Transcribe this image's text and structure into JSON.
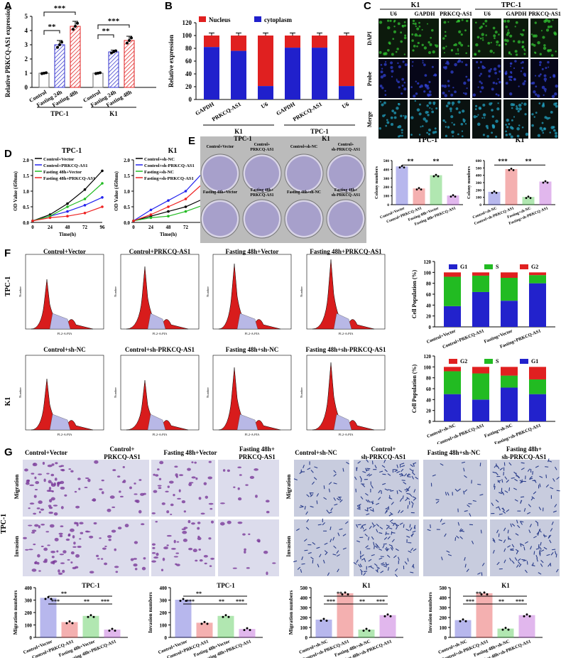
{
  "panel_letters": {
    "A": "A",
    "B": "B",
    "C": "C",
    "D": "D",
    "E": "E",
    "F": "F",
    "G": "G"
  },
  "panelA": {
    "ylabel": "Relative PRKCQ-AS1 expression",
    "yticks": [
      "0",
      "1",
      "2",
      "3",
      "4",
      "5"
    ],
    "groups": [
      {
        "label": "TPC-1",
        "cats": [
          "Control",
          "Fasting 24h",
          "Fasting 48h"
        ],
        "values": [
          1.0,
          3.0,
          4.3
        ],
        "err": [
          0.05,
          0.3,
          0.35
        ]
      },
      {
        "label": "K1",
        "cats": [
          "Control",
          "Fasting 24h",
          "Fasting 48h"
        ],
        "values": [
          1.0,
          2.5,
          3.3
        ],
        "err": [
          0.05,
          0.12,
          0.3
        ]
      }
    ],
    "sig": [
      "**",
      "***",
      "**",
      "***"
    ]
  },
  "panelB": {
    "ylabel": "Relative expression",
    "yticks": [
      "0",
      "20",
      "40",
      "60",
      "80",
      "100",
      "120"
    ],
    "legend": [
      "Nucleus",
      "cytoplasm"
    ],
    "cats": [
      "GAPDH",
      "PRKCQ-AS1",
      "U6",
      "GAPDH",
      "PRKCQ-AS1",
      "U6"
    ],
    "cyto": [
      82,
      76,
      21,
      81,
      81,
      21
    ],
    "groups": [
      "K1",
      "TPC-1"
    ]
  },
  "panelC": {
    "groups": [
      "K1",
      "TPC-1"
    ],
    "cols": [
      "U6",
      "GAPDH",
      "PRKCQ-AS1",
      "U6",
      "GAPDH",
      "PRKCQ-AS1"
    ],
    "rows": [
      "DAPI",
      "Probe",
      "Merge"
    ]
  },
  "panelD": {
    "xlabel": "Time(h)",
    "ylabel": "OD Value (450nm)",
    "xticks": [
      "0",
      "24",
      "48",
      "72",
      "96"
    ],
    "charts": [
      {
        "title": "TPC-1",
        "legend": [
          "Control+Vector",
          "Control+PRKCQ-AS1",
          "Fasting 48h+Vector",
          "Fasting 48h+PRKCQ-AS1"
        ],
        "series": [
          [
            0.05,
            0.25,
            0.6,
            1.05,
            1.65
          ],
          [
            0.05,
            0.2,
            0.35,
            0.55,
            0.8
          ],
          [
            0.05,
            0.2,
            0.5,
            0.75,
            1.25
          ],
          [
            0.05,
            0.15,
            0.2,
            0.3,
            0.5
          ]
        ],
        "yticks": [
          "0.0",
          "0.5",
          "1.0",
          "1.5",
          "2.0"
        ]
      },
      {
        "title": "K1",
        "legend": [
          "Control+sh-NC",
          "Control+sh-PRKCQ-AS1",
          "Fasting+sh-NC",
          "Fasting+sh-PRKCQ-AS1"
        ],
        "series": [
          [
            0.05,
            0.2,
            0.35,
            0.5,
            0.75
          ],
          [
            0.05,
            0.4,
            0.7,
            1.0,
            1.6
          ],
          [
            0.05,
            0.15,
            0.2,
            0.35,
            0.55
          ],
          [
            0.05,
            0.25,
            0.5,
            0.75,
            1.25
          ]
        ],
        "yticks": [
          "0.0",
          "0.5",
          "1.0",
          "1.5",
          "2.0"
        ]
      }
    ],
    "colors": [
      "#000000",
      "#2222ee",
      "#22bb22",
      "#ee2222"
    ]
  },
  "panelE": {
    "groups": [
      "TPC-1",
      "K1"
    ],
    "dish_labels": [
      "Control+Vector",
      "Control+ PRKCQ-AS1",
      "Control+sh-NC",
      "Control+ sh-PRKCQ-AS1",
      "Fasting 48h+Vector",
      "Fasting 48h+ PRKCQ-AS1",
      "Fasting 48h+sh-NC",
      "Fasting 48h+ sh-PRKCQ-AS1"
    ],
    "bars": [
      {
        "title": "TPC-1",
        "ylabel": "Colony numbers",
        "yticks": [
          "0",
          "100",
          "200",
          "300",
          "400",
          "500"
        ],
        "ymax": 500,
        "cats": [
          "Control+Vector",
          "Control+PRKCQ-AS1",
          "Fasting 48h+Vector",
          "Fasting 48h+PRKCQ-AS1"
        ],
        "values": [
          430,
          180,
          330,
          100
        ],
        "sig": [
          "**",
          "**"
        ]
      },
      {
        "title": "K1",
        "ylabel": "Colony numbers",
        "yticks": [
          "0",
          "100",
          "200",
          "300",
          "400",
          "500",
          "600"
        ],
        "ymax": 600,
        "cats": [
          "Control+sh-NC",
          "Control+sh-PRKCQ-AS1",
          "Fasting+sh-NC",
          "Fasting+sh-PRKCQ-AS1"
        ],
        "values": [
          170,
          480,
          100,
          310
        ],
        "sig": [
          "***",
          "**"
        ]
      }
    ]
  },
  "panelF": {
    "rows": [
      "TPC-1",
      "K1"
    ],
    "titles": [
      "Control+Vector",
      "Control+PRKCQ-AS1",
      "Fasting 48h+Vector",
      "Fasting 48h+PRKCQ-AS1",
      "Control+sh-NC",
      "Control+sh-PRKCQ-AS1",
      "Fasting 48h+sh-NC",
      "Fasting 48h+sh-PRKCQ-AS1"
    ],
    "xaxis": "FL2-A:PIA",
    "yaxis": "Number",
    "ylabel": "Cell Population (%)",
    "yticks": [
      "0",
      "20",
      "40",
      "60",
      "80",
      "100",
      "120"
    ],
    "stack1": {
      "legend": [
        "G1",
        "S",
        "G2"
      ],
      "cats": [
        "Control+Vector",
        "Control+PRKCQ-AS1",
        "Fasting+Vector",
        "Fasting+PRKCQ-AS1"
      ],
      "G1": [
        38,
        64,
        48,
        80
      ],
      "S": [
        54,
        30,
        42,
        15
      ],
      "G2": [
        8,
        6,
        10,
        5
      ]
    },
    "stack2": {
      "legend": [
        "G2",
        "S",
        "G1"
      ],
      "cats": [
        "Control+sh-NC",
        "Control+sh-PRKCQ-AS1",
        "Fasting+sh-NC",
        "Fasting+sh-PRKCQ-AS1"
      ],
      "G1": [
        50,
        40,
        62,
        50
      ],
      "S": [
        42,
        48,
        22,
        27
      ],
      "G2": [
        8,
        12,
        16,
        23
      ]
    }
  },
  "panelG": {
    "rowsL": [
      "Migration",
      "Invasion"
    ],
    "sideL": "TPC-1",
    "sideR": "K1",
    "rowsR": [
      "Migration",
      "Invasion"
    ],
    "colsL": [
      "Control+Vector",
      "Control+ PRKCQ-AS1",
      "Fasting 48h+Vector",
      "Fasting 48h+ PRKCQ-AS1"
    ],
    "colsR": [
      "Control+sh-NC",
      "Control+ sh-PRKCQ-AS1",
      "Fasting 48h+sh-NC",
      "Fasting 48h+ sh-PRKCQ-AS1"
    ],
    "bars": [
      {
        "title": "TPC-1",
        "ylabel": "Migration numbers",
        "yticks": [
          "0",
          "100",
          "200",
          "300",
          "400"
        ],
        "ymax": 400,
        "cats": [
          "Control+Vector",
          "Control+PRKCQ-AS1",
          "Fasting 48h+Vector",
          "Fasting 48h+PRKCQ-AS1"
        ],
        "values": [
          315,
          120,
          170,
          60
        ],
        "sig": [
          "**",
          "***",
          "***",
          "**"
        ]
      },
      {
        "title": "TPC-1",
        "ylabel": "Invasion numbers",
        "yticks": [
          "0",
          "100",
          "200",
          "300",
          "400"
        ],
        "ymax": 400,
        "cats": [
          "Control+Vector",
          "Control+PRKCQ-AS1",
          "Fasting 48h+Vector",
          "Fasting 48h+PRKCQ-AS1"
        ],
        "values": [
          300,
          115,
          170,
          65
        ],
        "sig": [
          "**",
          "***",
          "***",
          "**"
        ]
      },
      {
        "title": "K1",
        "ylabel": "Migration numbers",
        "yticks": [
          "0",
          "100",
          "200",
          "300",
          "400",
          "500"
        ],
        "ymax": 500,
        "cats": [
          "Control+sh-NC",
          "Control+sh-PRKCQ-AS1",
          "Fasting 48h+sh-NC",
          "Fasting 48h+sh-PRKCQ-AS1"
        ],
        "values": [
          175,
          440,
          75,
          220
        ],
        "sig": [
          "**",
          "***",
          "***",
          "**"
        ]
      },
      {
        "title": "K1",
        "ylabel": "Invasion numbers",
        "yticks": [
          "0",
          "100",
          "200",
          "300",
          "400",
          "500"
        ],
        "ymax": 500,
        "cats": [
          "Control+sh-NC",
          "Control+sh-PRKCQ-AS1",
          "Fasting 48h+sh-NC",
          "Fasting 48h+sh-PRKCQ-AS1"
        ],
        "values": [
          170,
          440,
          85,
          220
        ],
        "sig": [
          "**",
          "***",
          "***",
          "**"
        ]
      }
    ]
  },
  "colors": {
    "blue": "#3333cc",
    "red": "#e02020",
    "green": "#22bb22",
    "violet": "#aa33cc"
  }
}
